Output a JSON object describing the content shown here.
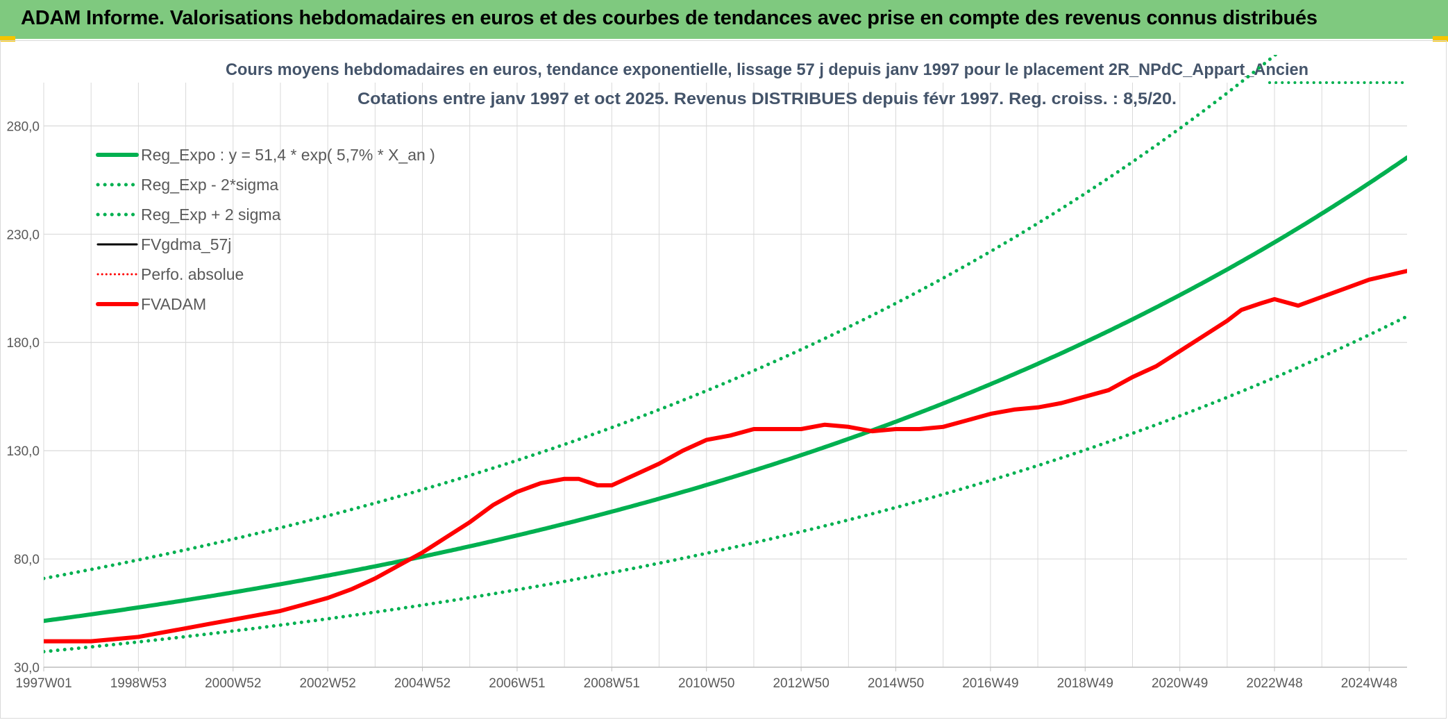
{
  "header": {
    "title": "ADAM Informe. Valorisations hebdomadaires en euros et des courbes de tendances avec prise en compte des revenus connus distribués"
  },
  "chart_data": {
    "type": "line",
    "title": "Cours moyens hebdomadaires en euros, tendance exponentielle, lissage 57 j depuis janv 1997 pour le placement 2R_NPdC_Appart_Ancien",
    "subtitle": "Cotations entre janv 1997 et oct 2025. Revenus DISTRIBUES depuis févr 1997. Reg. croiss. : 8,5/20.",
    "xlabel": "",
    "ylabel": "",
    "xlim": [
      1997.0,
      2025.8
    ],
    "ylim": [
      30,
      300
    ],
    "y_ticks": [
      30,
      80,
      130,
      180,
      230,
      280
    ],
    "y_tick_labels": [
      "30,0",
      "80,0",
      "130,0",
      "180,0",
      "230,0",
      "280,0"
    ],
    "x_ticks": [
      1997.0,
      1999.0,
      2001.0,
      2003.0,
      2005.0,
      2007.0,
      2009.0,
      2011.0,
      2013.0,
      2015.0,
      2017.0,
      2019.0,
      2021.0,
      2023.0,
      2025.0
    ],
    "x_tick_labels": [
      "1997W01",
      "1998W53",
      "2000W52",
      "2002W52",
      "2004W52",
      "2006W51",
      "2008W51",
      "2010W50",
      "2012W50",
      "2014W50",
      "2016W49",
      "2018W49",
      "2020W49",
      "2022W48",
      "2024W48"
    ],
    "grid": true,
    "legend_position": "top-left",
    "colors": {
      "reg_expo": "#00b050",
      "sigma_bands": "#00b050",
      "fvgdma": "#000000",
      "perfo": "#ff0000",
      "fvadam": "#ff0000",
      "grid": "#d9d9d9",
      "text": "#595959",
      "title_text": "#44546a"
    },
    "series": [
      {
        "name": "Reg_Expo : y = 51,4 * exp( 5,7% *  X_an )",
        "style": "solid-thick",
        "a": 51.4,
        "rate": 0.057,
        "x0": 1997.0
      },
      {
        "name": "Reg_Exp - 2*sigma",
        "style": "dotted",
        "a": 37.2,
        "rate": 0.057,
        "x0": 1997.0
      },
      {
        "name": "Reg_Exp + 2 sigma",
        "style": "dotted",
        "a": 71.0,
        "rate": 0.057,
        "x0": 1997.0
      },
      {
        "name": "FVgdma_57j",
        "style": "solid",
        "x": [],
        "values": []
      },
      {
        "name": "Perfo. absolue",
        "style": "dotted-thin",
        "x": [],
        "values": []
      },
      {
        "name": "FVADAM",
        "style": "solid-thick",
        "x": [
          1997.0,
          1997.5,
          1998.0,
          1998.5,
          1999.0,
          1999.5,
          2000.0,
          2000.5,
          2001.0,
          2001.5,
          2002.0,
          2002.5,
          2003.0,
          2003.5,
          2004.0,
          2004.5,
          2005.0,
          2005.5,
          2006.0,
          2006.5,
          2007.0,
          2007.5,
          2008.0,
          2008.3,
          2008.7,
          2009.0,
          2009.5,
          2010.0,
          2010.5,
          2011.0,
          2011.5,
          2012.0,
          2012.5,
          2013.0,
          2013.5,
          2014.0,
          2014.5,
          2015.0,
          2015.5,
          2016.0,
          2016.5,
          2017.0,
          2017.5,
          2018.0,
          2018.5,
          2019.0,
          2019.5,
          2020.0,
          2020.5,
          2021.0,
          2021.5,
          2022.0,
          2022.3,
          2022.7,
          2023.0,
          2023.5,
          2024.0,
          2024.5,
          2025.0,
          2025.8
        ],
        "values": [
          42,
          42,
          42,
          43,
          44,
          46,
          48,
          50,
          52,
          54,
          56,
          59,
          62,
          66,
          71,
          77,
          83,
          90,
          97,
          105,
          111,
          115,
          117,
          117,
          114,
          114,
          119,
          124,
          130,
          135,
          137,
          140,
          140,
          140,
          142,
          141,
          139,
          140,
          140,
          141,
          144,
          147,
          149,
          150,
          152,
          155,
          158,
          164,
          169,
          176,
          183,
          190,
          195,
          198,
          200,
          197,
          201,
          205,
          209,
          213
        ]
      }
    ]
  }
}
